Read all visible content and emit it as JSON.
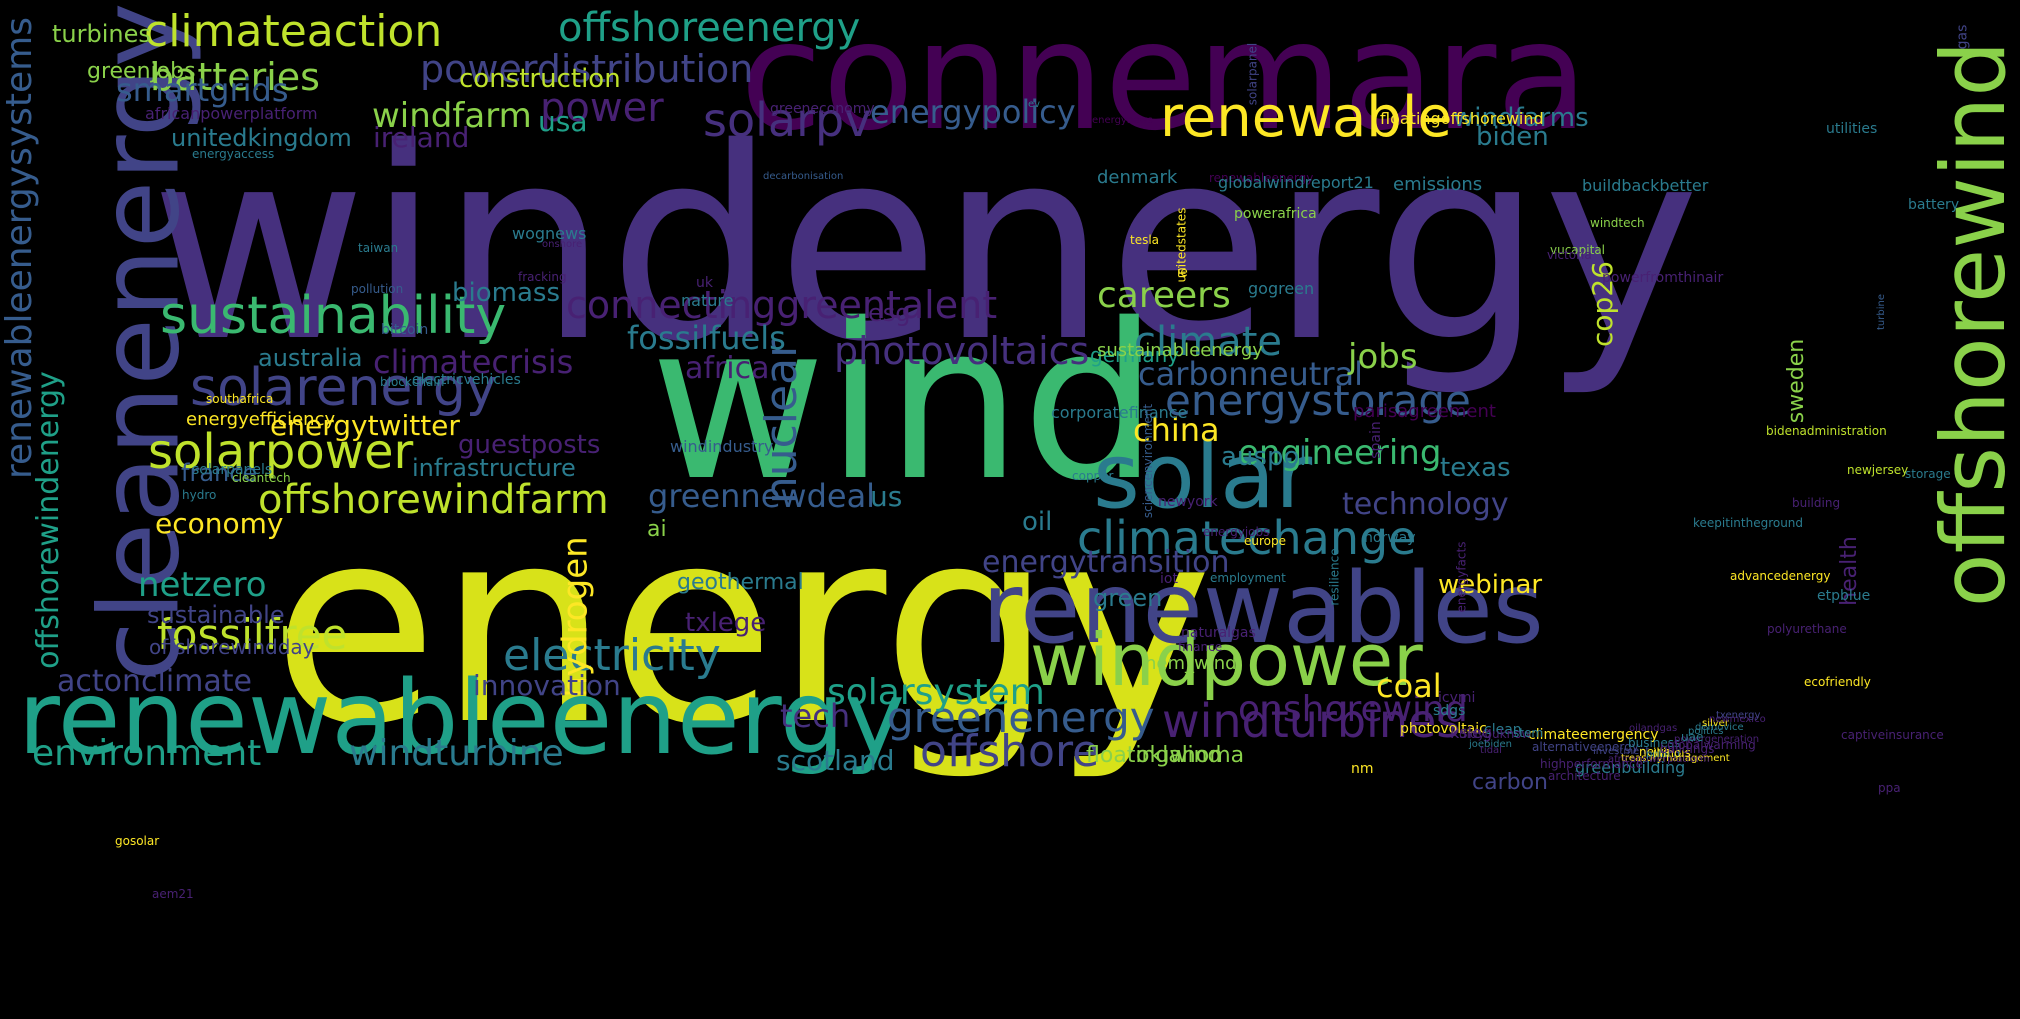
{
  "palette": {
    "background": "#000000",
    "c1": "#46307e",
    "c2": "#482173",
    "c3": "#bfe22c",
    "c4": "#3ab970",
    "c5": "#2a7b8e",
    "c6": "#414487",
    "c7": "#8ad14a",
    "c8": "#d8e219",
    "c9": "#1fa088",
    "c10": "#365c8d",
    "c11": "#440154",
    "c12": "#fde725"
  },
  "words": [
    {
      "text": "windenergy",
      "color": "c1"
    },
    {
      "text": "energy",
      "color": "c8"
    },
    {
      "text": "wind",
      "color": "c4"
    },
    {
      "text": "connemara",
      "color": "c11"
    },
    {
      "text": "renewableenergy",
      "color": "c9"
    },
    {
      "text": "renewables",
      "color": "c6"
    },
    {
      "text": "solar",
      "color": "c5"
    },
    {
      "text": "windpower",
      "color": "c7"
    },
    {
      "text": "cleanenergy",
      "color": "c6"
    },
    {
      "text": "offshorewind",
      "color": "c7"
    },
    {
      "text": "sustainability",
      "color": "c4"
    },
    {
      "text": "solarenergy",
      "color": "c6"
    },
    {
      "text": "renewable",
      "color": "c12"
    },
    {
      "text": "climateaction",
      "color": "c3"
    },
    {
      "text": "offshoreenergy",
      "color": "c9"
    },
    {
      "text": "windturbines",
      "color": "c2"
    },
    {
      "text": "greenenergy",
      "color": "c10"
    },
    {
      "text": "solarpower",
      "color": "c3"
    },
    {
      "text": "climatechange",
      "color": "c5"
    },
    {
      "text": "connectinggreentalent",
      "color": "c2"
    },
    {
      "text": "energystorage",
      "color": "c10"
    },
    {
      "text": "offshorewindfarm",
      "color": "c3"
    },
    {
      "text": "electricity",
      "color": "c5"
    },
    {
      "text": "photovoltaics",
      "color": "c1"
    },
    {
      "text": "powerdistribution",
      "color": "c6"
    },
    {
      "text": "fossilfree",
      "color": "c3"
    },
    {
      "text": "batteries",
      "color": "c7"
    },
    {
      "text": "solarpv",
      "color": "c1"
    },
    {
      "text": "climate",
      "color": "c5"
    },
    {
      "text": "offshore",
      "color": "c6"
    },
    {
      "text": "renewableenergysystems",
      "color": "c10"
    },
    {
      "text": "environment",
      "color": "c9"
    },
    {
      "text": "windturbine",
      "color": "c5"
    },
    {
      "text": "energytransition",
      "color": "c6"
    },
    {
      "text": "solarsystem",
      "color": "c9"
    },
    {
      "text": "power",
      "color": "c2"
    },
    {
      "text": "nuclear",
      "color": "c10"
    },
    {
      "text": "careers",
      "color": "c7"
    },
    {
      "text": "onshorewind",
      "color": "c2"
    },
    {
      "text": "offshorewindenergy",
      "color": "c9"
    },
    {
      "text": "netzero",
      "color": "c9"
    },
    {
      "text": "climatecrisis",
      "color": "c2"
    },
    {
      "text": "engineering",
      "color": "c4"
    },
    {
      "text": "carbonneutral",
      "color": "c10"
    },
    {
      "text": "energypolicy",
      "color": "c10"
    },
    {
      "text": "smartgrids",
      "color": "c10"
    },
    {
      "text": "windfarm",
      "color": "c7"
    },
    {
      "text": "hydrogen",
      "color": "c12"
    },
    {
      "text": "greennewdeal",
      "color": "c10"
    },
    {
      "text": "fossilfuels",
      "color": "c5"
    },
    {
      "text": "actonclimate",
      "color": "c6"
    },
    {
      "text": "jobs",
      "color": "c7"
    },
    {
      "text": "technology",
      "color": "c6"
    },
    {
      "text": "china",
      "color": "c12"
    },
    {
      "text": "coal",
      "color": "c12"
    },
    {
      "text": "economy",
      "color": "c12"
    },
    {
      "text": "energytwitter",
      "color": "c12"
    },
    {
      "text": "innovation",
      "color": "c6"
    },
    {
      "text": "tech",
      "color": "c1"
    },
    {
      "text": "cop26",
      "color": "c3"
    },
    {
      "text": "ireland",
      "color": "c2"
    },
    {
      "text": "biomass",
      "color": "c5"
    },
    {
      "text": "guestposts",
      "color": "c2"
    },
    {
      "text": "construction",
      "color": "c3"
    },
    {
      "text": "scotland",
      "color": "c5"
    },
    {
      "text": "oil",
      "color": "c5"
    },
    {
      "text": "infrastructure",
      "color": "c5"
    },
    {
      "text": "us",
      "color": "c5"
    },
    {
      "text": "texas",
      "color": "c5"
    },
    {
      "text": "auspol",
      "color": "c5"
    },
    {
      "text": "australia",
      "color": "c5"
    },
    {
      "text": "sustainable",
      "color": "c6"
    },
    {
      "text": "unitedkingdom",
      "color": "c5"
    },
    {
      "text": "usa",
      "color": "c9"
    },
    {
      "text": "africa",
      "color": "c2"
    },
    {
      "text": "geothermal",
      "color": "c5"
    },
    {
      "text": "webinar",
      "color": "c12"
    },
    {
      "text": "biden",
      "color": "c5"
    },
    {
      "text": "windfarms",
      "color": "c5"
    },
    {
      "text": "france",
      "color": "c10"
    },
    {
      "text": "txlege",
      "color": "c2"
    },
    {
      "text": "offshorewindday",
      "color": "c6"
    },
    {
      "text": "turbines",
      "color": "c7"
    },
    {
      "text": "greenjobs",
      "color": "c7"
    },
    {
      "text": "esg",
      "color": "c2"
    },
    {
      "text": "green",
      "color": "c5"
    },
    {
      "text": "ai",
      "color": "c7"
    },
    {
      "text": "health",
      "color": "c2"
    },
    {
      "text": "floatingwind",
      "color": "c7"
    },
    {
      "text": "oklahoma",
      "color": "c7"
    },
    {
      "text": "sweden",
      "color": "c7"
    },
    {
      "text": "carbon",
      "color": "c6"
    },
    {
      "text": "emissions",
      "color": "c5"
    },
    {
      "text": "germany",
      "color": "c9"
    },
    {
      "text": "energyefficiency",
      "color": "c12"
    },
    {
      "text": "sustainableenergy",
      "color": "c7"
    },
    {
      "text": "denmark",
      "color": "c5"
    },
    {
      "text": "nem_wind",
      "color": "c7"
    },
    {
      "text": "africanpowerplatform",
      "color": "c2"
    },
    {
      "text": "greeneconomy",
      "color": "c2"
    },
    {
      "text": "energyaccess",
      "color": "c5"
    },
    {
      "text": "decarbonisation",
      "color": "c10"
    },
    {
      "text": "wognews",
      "color": "c5"
    },
    {
      "text": "renewableenergy",
      "color": "c11"
    },
    {
      "text": "globalwindreport21",
      "color": "c5"
    },
    {
      "text": "buildbackbetter",
      "color": "c5"
    },
    {
      "text": "floatingoffshorewind",
      "color": "c12"
    },
    {
      "text": "utilities",
      "color": "c5"
    },
    {
      "text": "battery",
      "color": "c5"
    },
    {
      "text": "gas",
      "color": "c6"
    },
    {
      "text": "ev",
      "color": "c5"
    },
    {
      "text": "energynews",
      "color": "c11"
    },
    {
      "text": "solarpanel",
      "color": "c6"
    },
    {
      "text": "electricvehicles",
      "color": "c5"
    },
    {
      "text": "blockchain",
      "color": "c5"
    },
    {
      "text": "southafrica",
      "color": "c12"
    },
    {
      "text": "solarpanels",
      "color": "c5"
    },
    {
      "text": "hydro",
      "color": "c5"
    },
    {
      "text": "cleantech",
      "color": "c7"
    },
    {
      "text": "bitcoin",
      "color": "c10"
    },
    {
      "text": "pollution",
      "color": "c10"
    },
    {
      "text": "taiwan",
      "color": "c5"
    },
    {
      "text": "onshore",
      "color": "c2"
    },
    {
      "text": "tesla",
      "color": "c12"
    },
    {
      "text": "unitedstates",
      "color": "c12"
    },
    {
      "text": "ie",
      "color": "c12"
    },
    {
      "text": "fracking",
      "color": "c2"
    },
    {
      "text": "nature",
      "color": "c5"
    },
    {
      "text": "uk",
      "color": "c2"
    },
    {
      "text": "gogreen",
      "color": "c5"
    },
    {
      "text": "powerafrica",
      "color": "c7"
    },
    {
      "text": "windtech",
      "color": "c7"
    },
    {
      "text": "vucapital",
      "color": "c7"
    },
    {
      "text": "victoria",
      "color": "c2"
    },
    {
      "text": "powerfromthinair",
      "color": "c2"
    },
    {
      "text": "turbine",
      "color": "c10"
    },
    {
      "text": "corporatefinance",
      "color": "c5"
    },
    {
      "text": "windindustry",
      "color": "c10"
    },
    {
      "text": "parisagreement",
      "color": "c11"
    },
    {
      "text": "spain",
      "color": "c2"
    },
    {
      "text": "sciencenvironment",
      "color": "c10"
    },
    {
      "text": "newjersey",
      "color": "c3"
    },
    {
      "text": "bidenadministration",
      "color": "c3"
    },
    {
      "text": "storage",
      "color": "c5"
    },
    {
      "text": "building",
      "color": "c2"
    },
    {
      "text": "etpblue",
      "color": "c5"
    },
    {
      "text": "copper",
      "color": "c5"
    },
    {
      "text": "newyork",
      "color": "c2"
    },
    {
      "text": "europe",
      "color": "c12"
    },
    {
      "text": "energyjobs",
      "color": "c2"
    },
    {
      "text": "iot",
      "color": "c2"
    },
    {
      "text": "employment",
      "color": "c5"
    },
    {
      "text": "resilience",
      "color": "c5"
    },
    {
      "text": "naturalgas",
      "color": "c2"
    },
    {
      "text": "finance",
      "color": "c2"
    },
    {
      "text": "norway",
      "color": "c5"
    },
    {
      "text": "energyfacts",
      "color": "c2"
    },
    {
      "text": "icymi",
      "color": "c2"
    },
    {
      "text": "photovoltaic",
      "color": "c12"
    },
    {
      "text": "nm",
      "color": "c12"
    },
    {
      "text": "ksleg",
      "color": "c2"
    },
    {
      "text": "sdgs",
      "color": "c5"
    },
    {
      "text": "climateemergency",
      "color": "c12"
    },
    {
      "text": "greenbuilding",
      "color": "c5"
    },
    {
      "text": "clean",
      "color": "c5"
    },
    {
      "text": "didyouknow",
      "color": "c2"
    },
    {
      "text": "joebiden",
      "color": "c5"
    },
    {
      "text": "tidal",
      "color": "c2"
    },
    {
      "text": "stem",
      "color": "c5"
    },
    {
      "text": "architecture",
      "color": "c2"
    },
    {
      "text": "highperformance",
      "color": "c2"
    },
    {
      "text": "alternativeenergy",
      "color": "c6"
    },
    {
      "text": "investment",
      "color": "c6"
    },
    {
      "text": "treasurymanagement",
      "color": "c12"
    },
    {
      "text": "africapowerplatform",
      "color": "c2"
    },
    {
      "text": "oilandgas",
      "color": "c2"
    },
    {
      "text": "business",
      "color": "c5"
    },
    {
      "text": "news",
      "color": "c12"
    },
    {
      "text": "poland",
      "color": "c5"
    },
    {
      "text": "illinois",
      "color": "c12"
    },
    {
      "text": "buildings",
      "color": "c2"
    },
    {
      "text": "globalwarming",
      "color": "c2"
    },
    {
      "text": "powergeneration",
      "color": "c2"
    },
    {
      "text": "uae",
      "color": "c5"
    },
    {
      "text": "politics",
      "color": "c5"
    },
    {
      "text": "demovice",
      "color": "c5"
    },
    {
      "text": "silver",
      "color": "c12"
    },
    {
      "text": "newmexico",
      "color": "c2"
    },
    {
      "text": "txenergy",
      "color": "c6"
    },
    {
      "text": "keepitintheground",
      "color": "c5"
    },
    {
      "text": "advancedenergy",
      "color": "c12"
    },
    {
      "text": "polyurethane",
      "color": "c2"
    },
    {
      "text": "ecofriendly",
      "color": "c12"
    },
    {
      "text": "captiveinsurance",
      "color": "c2"
    },
    {
      "text": "ppa",
      "color": "c2"
    },
    {
      "text": "gosolar",
      "color": "c12"
    },
    {
      "text": "aem21",
      "color": "c2"
    }
  ]
}
